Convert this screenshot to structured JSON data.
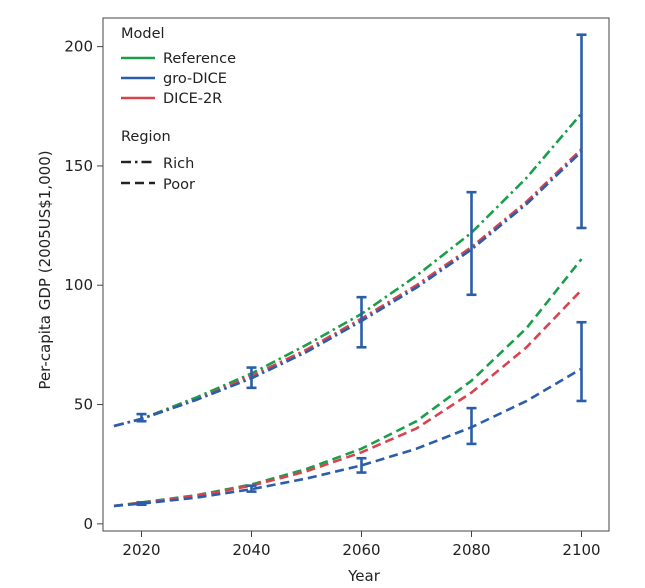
{
  "chart_data": {
    "type": "line",
    "title": "",
    "xlabel": "Year",
    "ylabel": "Per-capita GDP (2005US$1,000)",
    "xlim": [
      2013,
      2105
    ],
    "ylim": [
      -3,
      212
    ],
    "x_ticks": [
      2020,
      2040,
      2060,
      2080,
      2100
    ],
    "y_ticks": [
      0,
      50,
      100,
      150,
      200
    ],
    "grid": false,
    "legend": {
      "placement": "top-left",
      "model_title": "Model",
      "models": [
        {
          "name": "Reference",
          "color": "#1a9e4a"
        },
        {
          "name": "gro-DICE",
          "color": "#2a5ea8"
        },
        {
          "name": "DICE-2R",
          "color": "#d8434f"
        }
      ],
      "region_title": "Region",
      "regions": [
        {
          "name": "Rich",
          "style": "dashdot"
        },
        {
          "name": "Poor",
          "style": "dashed"
        }
      ]
    },
    "x": [
      2015,
      2020,
      2030,
      2040,
      2050,
      2060,
      2070,
      2080,
      2090,
      2100
    ],
    "series": [
      {
        "name": "Reference",
        "region": "Rich",
        "color": "#1a9e4a",
        "values": [
          41,
          44,
          53,
          63,
          75,
          88,
          104,
          122,
          145,
          172
        ]
      },
      {
        "name": "DICE-2R",
        "region": "Rich",
        "color": "#d8434f",
        "values": [
          41,
          44,
          52,
          62,
          73,
          86,
          100,
          116,
          135,
          157
        ]
      },
      {
        "name": "gro-DICE",
        "region": "Rich",
        "color": "#2a5ea8",
        "values": [
          41,
          44,
          52,
          61,
          72,
          85,
          99,
          115,
          134,
          156
        ]
      },
      {
        "name": "Reference",
        "region": "Poor",
        "color": "#1a9e4a",
        "values": [
          7.5,
          9,
          12,
          16.5,
          23,
          31.5,
          43,
          60,
          82,
          111
        ]
      },
      {
        "name": "DICE-2R",
        "region": "Poor",
        "color": "#d8434f",
        "values": [
          7.5,
          8.8,
          11.8,
          16,
          22,
          30,
          40,
          55,
          74,
          98
        ]
      },
      {
        "name": "gro-DICE",
        "region": "Poor",
        "color": "#2a5ea8",
        "values": [
          7.5,
          8.5,
          11,
          14.5,
          19,
          24.5,
          31.5,
          40.5,
          51.5,
          65
        ]
      }
    ],
    "error_bars": {
      "series": "gro-DICE",
      "color": "#2a5ea8",
      "bars": [
        {
          "x": 2020,
          "low": 43,
          "high": 46
        },
        {
          "x": 2040,
          "low": 57,
          "high": 65.5
        },
        {
          "x": 2060,
          "low": 74,
          "high": 95
        },
        {
          "x": 2080,
          "low": 96,
          "high": 139
        },
        {
          "x": 2100,
          "low": 124,
          "high": 205
        },
        {
          "x": 2020,
          "low": 8,
          "high": 9
        },
        {
          "x": 2040,
          "low": 13.5,
          "high": 16
        },
        {
          "x": 2060,
          "low": 21.5,
          "high": 27.5
        },
        {
          "x": 2080,
          "low": 33.5,
          "high": 48.5
        },
        {
          "x": 2100,
          "low": 51.5,
          "high": 84.5
        }
      ]
    }
  }
}
